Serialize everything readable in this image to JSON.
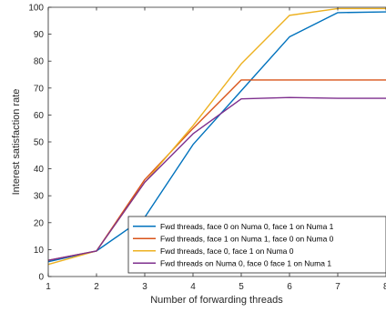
{
  "chart_data": {
    "type": "line",
    "xlabel": "Number of forwarding threads",
    "ylabel": "Interest satisfaction rate",
    "x": [
      1,
      2,
      3,
      4,
      5,
      6,
      7,
      8
    ],
    "xlim": [
      1,
      8
    ],
    "ylim": [
      0,
      100
    ],
    "xticks": [
      "1",
      "2",
      "3",
      "4",
      "5",
      "6",
      "7",
      "8"
    ],
    "yticks": [
      "0",
      "10",
      "20",
      "30",
      "40",
      "50",
      "60",
      "70",
      "80",
      "90",
      "100"
    ],
    "grid": false,
    "legend_position": "lower-right",
    "series": [
      {
        "name": "Fwd threads, face 0 on Numa 0, face 1 on Numa 1",
        "color": "#0072BD",
        "values": [
          5.5,
          9.5,
          22,
          49,
          69,
          89,
          98,
          98.3
        ]
      },
      {
        "name": "Fwd threads, face 1 on Numa 1, face 0 on Numa 0",
        "color": "#D95319",
        "values": [
          6,
          9.5,
          36,
          55,
          73,
          73,
          73,
          73
        ]
      },
      {
        "name": "Fwd threads, face 0, face 1 on Numa 0",
        "color": "#EDB120",
        "values": [
          4.5,
          9.5,
          35,
          56,
          79,
          97,
          99.5,
          99.5
        ]
      },
      {
        "name": "Fwd threads on Numa 0, face 0 face 1 on Numa 1",
        "color": "#7E2F8E",
        "values": [
          6,
          9.5,
          35,
          53,
          66,
          66.5,
          66.2,
          66.2
        ]
      }
    ]
  }
}
